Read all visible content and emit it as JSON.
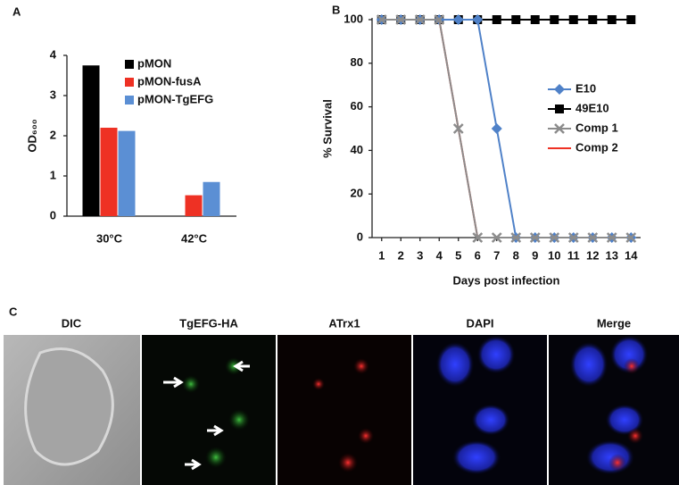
{
  "panel_labels": [
    "A",
    "B",
    "C"
  ],
  "chart_data": [
    {
      "type": "bar",
      "ylabel": "OD₆₀₀",
      "categories": [
        "30°C",
        "42°C"
      ],
      "series": [
        {
          "name": "pMON",
          "color": "#000000",
          "values": [
            3.75,
            0
          ]
        },
        {
          "name": "pMON-fusA",
          "color": "#ee3124",
          "values": [
            2.2,
            0.52
          ]
        },
        {
          "name": "pMON-TgEFG",
          "color": "#5b8fd4",
          "values": [
            2.12,
            0.85
          ]
        }
      ],
      "ylim": [
        0,
        4
      ],
      "yticks": [
        0,
        1,
        2,
        3,
        4
      ],
      "legend": "upper right"
    },
    {
      "type": "line",
      "xlabel": "Days post infection",
      "ylabel": "% Survival",
      "x": [
        1,
        2,
        3,
        4,
        5,
        6,
        7,
        8,
        9,
        10,
        11,
        12,
        13,
        14
      ],
      "series": [
        {
          "name": "E10",
          "color": "#4f81c8",
          "marker": "diamond",
          "values": [
            100,
            100,
            100,
            100,
            100,
            100,
            50,
            0,
            0,
            0,
            0,
            0,
            0,
            0
          ]
        },
        {
          "name": "49E10",
          "color": "#000000",
          "marker": "square",
          "values": [
            100,
            100,
            100,
            100,
            100,
            100,
            100,
            100,
            100,
            100,
            100,
            100,
            100,
            100
          ]
        },
        {
          "name": "Comp 1",
          "color": "#8c8c8c",
          "marker": "x",
          "values": [
            100,
            100,
            100,
            100,
            50,
            0,
            0,
            0,
            0,
            0,
            0,
            0,
            0,
            0
          ]
        },
        {
          "name": "Comp 2",
          "color": "#ee3124",
          "values": [
            100,
            100,
            100,
            100,
            50,
            0,
            0,
            0,
            0,
            0,
            0,
            0,
            0,
            0
          ]
        }
      ],
      "xlim": [
        0.5,
        14.5
      ],
      "xticks": [
        1,
        2,
        3,
        4,
        5,
        6,
        7,
        8,
        9,
        10,
        11,
        12,
        13,
        14
      ],
      "ylim": [
        0,
        100
      ],
      "yticks": [
        0,
        20,
        40,
        60,
        80,
        100
      ],
      "legend": "center right"
    }
  ],
  "microscopy": {
    "titles": [
      "DIC",
      "TgEFG-HA",
      "ATrx1",
      "DAPI",
      "Merge"
    ]
  }
}
